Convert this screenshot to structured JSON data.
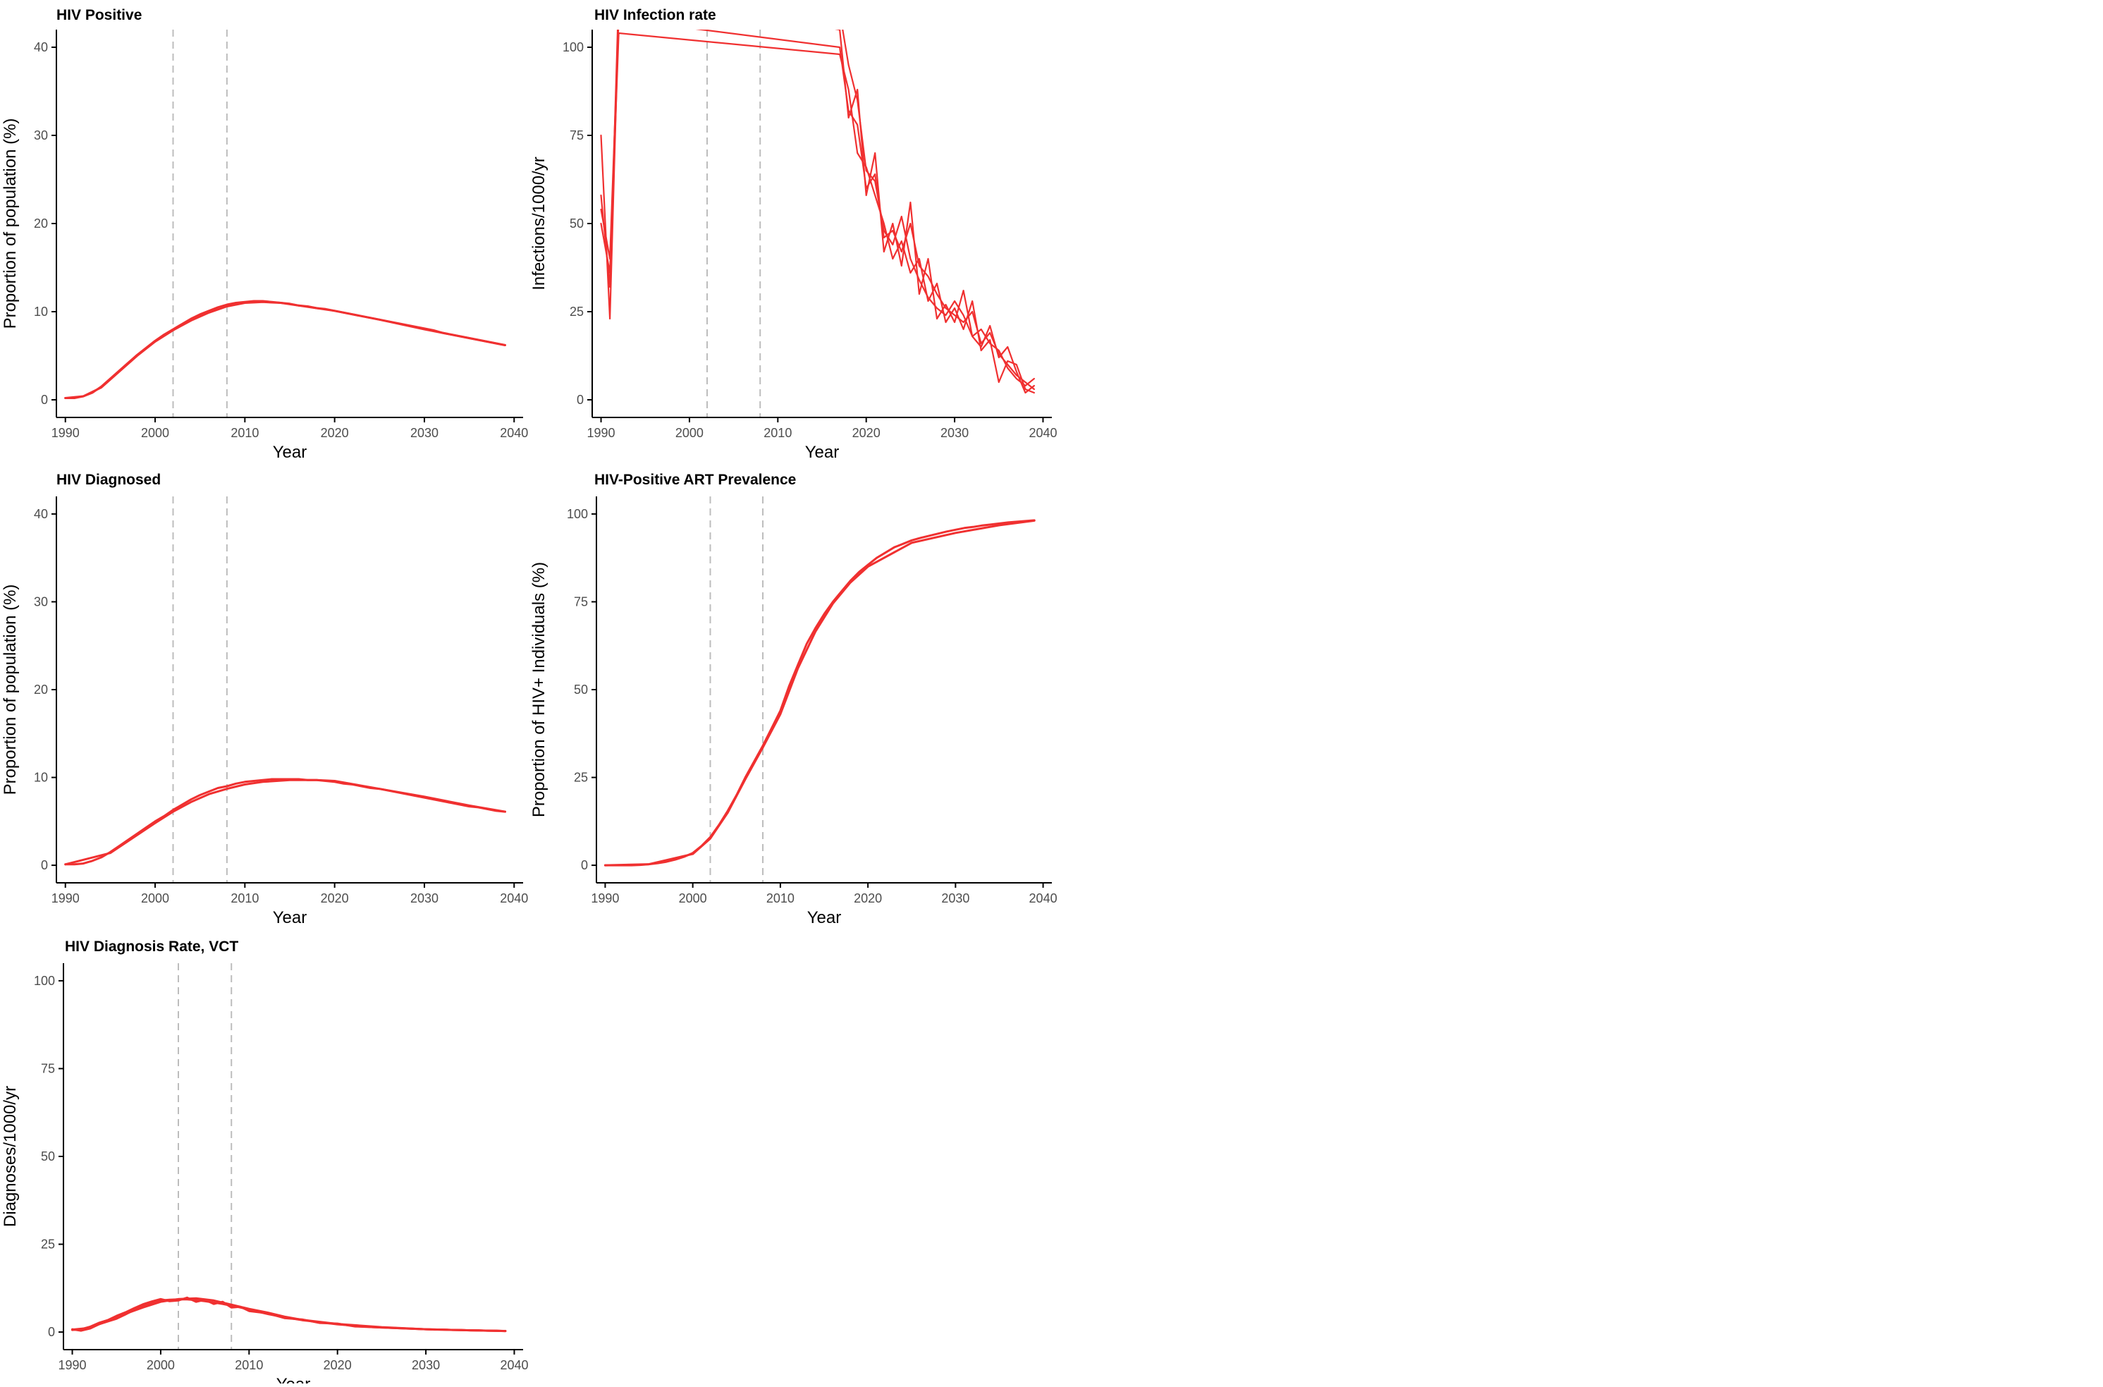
{
  "colors": {
    "series": "#f03030",
    "reference": "#bdbdbd",
    "axis": "#000000",
    "tick_text": "#4d4d4d"
  },
  "chart_data": [
    {
      "type": "line",
      "title": "HIV Positive",
      "xlabel": "Year",
      "ylabel": "Proportion of population (%)",
      "xlim": [
        1989,
        2041
      ],
      "ylim": [
        -2,
        42
      ],
      "xticks": [
        1990,
        2000,
        2010,
        2020,
        2030,
        2040
      ],
      "yticks": [
        0,
        10,
        20,
        30,
        40
      ],
      "reference_lines_x": [
        2002,
        2008
      ],
      "grid": false,
      "legend": "none",
      "series": [
        {
          "x": [
            1990,
            1991,
            1992,
            1993,
            1994,
            1995,
            1996,
            1997,
            1998,
            1999,
            2000,
            2001,
            2002,
            2003,
            2004,
            2005,
            2006,
            2007,
            2008,
            2009,
            2010,
            2011,
            2012,
            2013,
            2014,
            2015,
            2016,
            2017,
            2018,
            2019,
            2020,
            2021,
            2022,
            2023,
            2024,
            2025,
            2026,
            2027,
            2028,
            2029,
            2030,
            2031,
            2032,
            2033,
            2034,
            2035,
            2036,
            2037,
            2038,
            2039
          ],
          "y": [
            0.2,
            0.2,
            0.4,
            0.8,
            1.5,
            2.4,
            3.3,
            4.2,
            5.1,
            5.9,
            6.7,
            7.4,
            8.0,
            8.6,
            9.2,
            9.7,
            10.1,
            10.5,
            10.8,
            11.0,
            11.1,
            11.2,
            11.2,
            11.1,
            11.0,
            10.9,
            10.7,
            10.6,
            10.4,
            10.3,
            10.1,
            9.9,
            9.7,
            9.5,
            9.3,
            9.1,
            8.9,
            8.7,
            8.5,
            8.3,
            8.1,
            7.9,
            7.6,
            7.4,
            7.2,
            7.0,
            6.8,
            6.6,
            6.4,
            6.2
          ]
        },
        {
          "x": [
            1990,
            1992,
            1994,
            1996,
            1998,
            2000,
            2002,
            2004,
            2006,
            2008,
            2010,
            2012,
            2014,
            2016,
            2018,
            2020,
            2025,
            2030,
            2035,
            2039
          ],
          "y": [
            0.2,
            0.4,
            1.4,
            3.2,
            5.0,
            6.6,
            7.9,
            9.0,
            9.9,
            10.6,
            11.0,
            11.1,
            11.0,
            10.7,
            10.4,
            10.1,
            9.1,
            8.0,
            7.0,
            6.2
          ]
        }
      ]
    },
    {
      "type": "line",
      "title": "HIV Infection rate",
      "xlabel": "Year",
      "ylabel": "Infections/1000/yr",
      "xlim": [
        1989,
        2041
      ],
      "ylim": [
        -5,
        105
      ],
      "xticks": [
        1990,
        2000,
        2010,
        2020,
        2030,
        2040
      ],
      "yticks": [
        0,
        25,
        50,
        75,
        100
      ],
      "reference_lines_x": [
        2002,
        2008
      ],
      "grid": false,
      "legend": "none",
      "series": [
        {
          "x": [
            1990,
            1991,
            1992,
            2017,
            2018,
            2019,
            2020,
            2021,
            2022,
            2023,
            2024,
            2025,
            2026,
            2027,
            2028,
            2029,
            2030,
            2031,
            2032,
            2033,
            2034,
            2035,
            2036,
            2037,
            2038,
            2039
          ],
          "y": [
            75,
            23,
            110,
            110,
            95,
            85,
            65,
            62,
            48,
            44,
            52,
            40,
            34,
            29,
            26,
            24,
            28,
            24,
            18,
            20,
            16,
            14,
            9,
            6,
            4,
            6
          ]
        },
        {
          "x": [
            1990,
            1991,
            1992,
            2017,
            2018,
            2019,
            2020,
            2021,
            2022,
            2023,
            2024,
            2025,
            2026,
            2027,
            2028,
            2029,
            2030,
            2031,
            2032,
            2033,
            2034,
            2035,
            2036,
            2037,
            2038,
            2039
          ],
          "y": [
            58,
            32,
            115,
            105,
            80,
            88,
            58,
            70,
            42,
            50,
            38,
            56,
            30,
            40,
            23,
            27,
            22,
            31,
            18,
            15,
            21,
            12,
            15,
            8,
            2,
            4
          ]
        },
        {
          "x": [
            1990,
            1991,
            1992,
            2017,
            2018,
            2019,
            2020,
            2021,
            2022,
            2023,
            2024,
            2025,
            2026,
            2027,
            2028,
            2029,
            2030,
            2031,
            2032,
            2033,
            2034,
            2035,
            2036,
            2037,
            2038,
            2039
          ],
          "y": [
            54,
            40,
            108,
            100,
            82,
            78,
            60,
            64,
            46,
            48,
            42,
            50,
            38,
            35,
            30,
            26,
            24,
            22,
            25,
            16,
            19,
            13,
            10,
            7,
            5,
            3
          ]
        },
        {
          "x": [
            1990,
            1991,
            1992,
            2017,
            2018,
            2019,
            2020,
            2021,
            2022,
            2023,
            2024,
            2025,
            2026,
            2027,
            2028,
            2029,
            2030,
            2031,
            2032,
            2033,
            2034,
            2035,
            2036,
            2037,
            2038,
            2039
          ],
          "y": [
            50,
            36,
            104,
            98,
            88,
            70,
            66,
            58,
            50,
            40,
            45,
            36,
            40,
            28,
            33,
            22,
            26,
            20,
            28,
            14,
            17,
            5,
            11,
            10,
            3,
            2
          ]
        }
      ]
    },
    {
      "type": "line",
      "title": "HIV Diagnosed",
      "xlabel": "Year",
      "ylabel": "Proportion of population (%)",
      "xlim": [
        1989,
        2041
      ],
      "ylim": [
        -2,
        42
      ],
      "xticks": [
        1990,
        2000,
        2010,
        2020,
        2030,
        2040
      ],
      "yticks": [
        0,
        10,
        20,
        30,
        40
      ],
      "reference_lines_x": [
        2002,
        2008
      ],
      "grid": false,
      "legend": "none",
      "series": [
        {
          "x": [
            1990,
            1991,
            1992,
            1993,
            1994,
            1995,
            1996,
            1997,
            1998,
            1999,
            2000,
            2001,
            2002,
            2003,
            2004,
            2005,
            2006,
            2007,
            2008,
            2009,
            2010,
            2011,
            2012,
            2013,
            2014,
            2015,
            2016,
            2017,
            2018,
            2019,
            2020,
            2021,
            2022,
            2023,
            2024,
            2025,
            2026,
            2027,
            2028,
            2029,
            2030,
            2031,
            2032,
            2033,
            2034,
            2035,
            2036,
            2037,
            2038,
            2039
          ],
          "y": [
            0.1,
            0.1,
            0.2,
            0.5,
            0.9,
            1.5,
            2.2,
            2.9,
            3.6,
            4.3,
            5.0,
            5.6,
            6.3,
            6.9,
            7.5,
            8.0,
            8.4,
            8.8,
            9.0,
            9.3,
            9.5,
            9.6,
            9.7,
            9.8,
            9.8,
            9.8,
            9.8,
            9.7,
            9.7,
            9.6,
            9.5,
            9.3,
            9.2,
            9.0,
            8.8,
            8.7,
            8.5,
            8.3,
            8.1,
            7.9,
            7.7,
            7.5,
            7.3,
            7.1,
            6.9,
            6.7,
            6.6,
            6.4,
            6.2,
            6.1
          ]
        },
        {
          "x": [
            1990,
            1995,
            2000,
            2002,
            2004,
            2006,
            2008,
            2010,
            2012,
            2015,
            2018,
            2020,
            2025,
            2030,
            2035,
            2039
          ],
          "y": [
            0.1,
            1.4,
            4.8,
            6.1,
            7.2,
            8.1,
            8.7,
            9.2,
            9.5,
            9.7,
            9.7,
            9.6,
            8.7,
            7.8,
            6.8,
            6.1
          ]
        }
      ]
    },
    {
      "type": "line",
      "title": "HIV-Positive ART Prevalence",
      "xlabel": "Year",
      "ylabel": "Proportion of HIV+ Individuals (%)",
      "xlim": [
        1989,
        2041
      ],
      "ylim": [
        -5,
        105
      ],
      "xticks": [
        1990,
        2000,
        2010,
        2020,
        2030,
        2040
      ],
      "yticks": [
        0,
        25,
        50,
        75,
        100
      ],
      "reference_lines_x": [
        2002,
        2008
      ],
      "grid": false,
      "legend": "none",
      "series": [
        {
          "x": [
            1990,
            1991,
            1992,
            1993,
            1994,
            1995,
            1996,
            1997,
            1998,
            1999,
            2000,
            2001,
            2002,
            2003,
            2004,
            2005,
            2006,
            2007,
            2008,
            2009,
            2010,
            2011,
            2012,
            2013,
            2014,
            2015,
            2016,
            2017,
            2018,
            2019,
            2020,
            2021,
            2022,
            2023,
            2024,
            2025,
            2026,
            2027,
            2028,
            2029,
            2030,
            2031,
            2032,
            2033,
            2034,
            2035,
            2036,
            2037,
            2038,
            2039
          ],
          "y": [
            0,
            0,
            0,
            0,
            0.1,
            0.3,
            0.6,
            1.0,
            1.6,
            2.4,
            3.5,
            5.5,
            8.0,
            11.5,
            15.5,
            20.0,
            25.0,
            29.5,
            34.0,
            39.0,
            44.0,
            51.0,
            57.0,
            63.0,
            67.5,
            71.5,
            75.0,
            78.0,
            81.0,
            83.5,
            85.5,
            87.5,
            89.0,
            90.5,
            91.5,
            92.5,
            93.2,
            93.8,
            94.4,
            95.0,
            95.5,
            96.0,
            96.3,
            96.7,
            97.0,
            97.3,
            97.6,
            97.8,
            98.0,
            98.2
          ]
        },
        {
          "x": [
            1990,
            1995,
            2000,
            2002,
            2004,
            2006,
            2008,
            2010,
            2012,
            2014,
            2016,
            2018,
            2020,
            2025,
            2030,
            2035,
            2039
          ],
          "y": [
            0,
            0.3,
            3.2,
            7.6,
            15.0,
            24.5,
            33.5,
            43.0,
            56.0,
            66.5,
            74.5,
            80.5,
            85.0,
            91.8,
            94.6,
            96.8,
            98.1
          ]
        }
      ]
    },
    {
      "type": "line",
      "title": "HIV Diagnosis Rate, VCT",
      "xlabel": "Year",
      "ylabel": "Diagnoses/1000/yr",
      "xlim": [
        1989,
        2041
      ],
      "ylim": [
        -5,
        105
      ],
      "xticks": [
        1990,
        2000,
        2010,
        2020,
        2030,
        2040
      ],
      "yticks": [
        0,
        25,
        50,
        75,
        100
      ],
      "reference_lines_x": [
        2002,
        2008
      ],
      "grid": false,
      "legend": "none",
      "series": [
        {
          "x": [
            1990,
            1991,
            1992,
            1993,
            1994,
            1995,
            1996,
            1997,
            1998,
            1999,
            2000,
            2001,
            2002,
            2003,
            2004,
            2005,
            2006,
            2007,
            2008,
            2009,
            2010,
            2011,
            2012,
            2013,
            2014,
            2015,
            2016,
            2017,
            2018,
            2019,
            2020,
            2021,
            2022,
            2023,
            2024,
            2025,
            2026,
            2027,
            2028,
            2029,
            2030,
            2031,
            2032,
            2033,
            2034,
            2035,
            2036,
            2037,
            2038,
            2039
          ],
          "y": [
            0.8,
            0.4,
            1.0,
            2.2,
            3.0,
            3.8,
            5.0,
            6.3,
            7.4,
            8.3,
            9.0,
            9.2,
            9.3,
            9.3,
            9.1,
            8.8,
            8.4,
            8.0,
            7.5,
            7.0,
            6.4,
            5.8,
            5.2,
            4.7,
            4.2,
            3.8,
            3.4,
            3.1,
            2.8,
            2.5,
            2.2,
            2.0,
            1.8,
            1.6,
            1.4,
            1.3,
            1.2,
            1.1,
            1.0,
            0.9,
            0.8,
            0.7,
            0.7,
            0.6,
            0.6,
            0.5,
            0.5,
            0.4,
            0.4,
            0.3
          ]
        },
        {
          "x": [
            1990,
            1991,
            1992,
            1993,
            1994,
            1995,
            1996,
            1997,
            1998,
            1999,
            2000,
            2001,
            2002,
            2003,
            2004,
            2005,
            2006,
            2007,
            2008,
            2009,
            2010,
            2012,
            2014,
            2016,
            2018,
            2020,
            2022,
            2025,
            2030,
            2035,
            2039
          ],
          "y": [
            0.6,
            0.8,
            1.5,
            2.6,
            3.4,
            4.6,
            5.6,
            6.8,
            7.9,
            8.7,
            9.4,
            8.8,
            9.0,
            9.8,
            8.6,
            9.2,
            8.0,
            8.6,
            7.0,
            7.2,
            6.0,
            5.4,
            4.0,
            3.6,
            2.6,
            2.4,
            1.6,
            1.3,
            0.8,
            0.5,
            0.3
          ]
        },
        {
          "x": [
            1990,
            1992,
            1994,
            1996,
            1998,
            2000,
            2002,
            2004,
            2006,
            2008,
            2010,
            2012,
            2014,
            2016,
            2018,
            2020,
            2025,
            2030,
            2035,
            2039
          ],
          "y": [
            0.7,
            1.2,
            3.2,
            5.2,
            7.0,
            8.6,
            9.4,
            9.6,
            9.0,
            7.8,
            6.6,
            5.6,
            4.4,
            3.5,
            2.9,
            2.3,
            1.4,
            0.8,
            0.5,
            0.3
          ]
        }
      ]
    }
  ]
}
